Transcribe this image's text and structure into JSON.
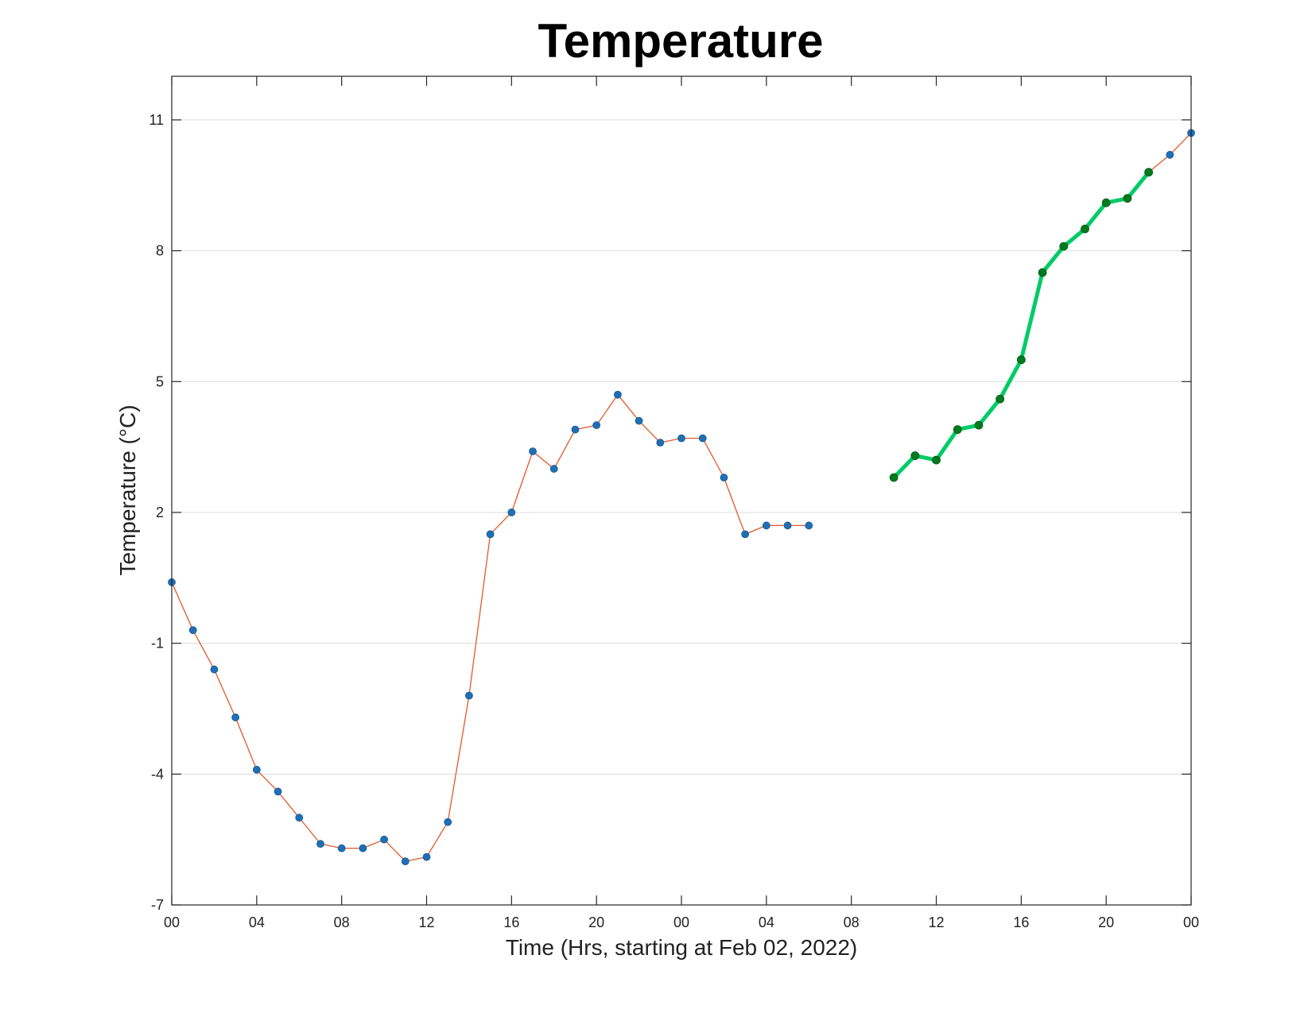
{
  "chart_data": {
    "type": "line",
    "title": "Temperature",
    "xlabel": "Time (Hrs, starting at Feb 02, 2022)",
    "ylabel": "Temperature (°C)",
    "xlim": [
      0,
      48
    ],
    "ylim": [
      -7,
      12
    ],
    "x_ticks": [
      0,
      4,
      8,
      12,
      16,
      20,
      24,
      28,
      32,
      36,
      40,
      44,
      48
    ],
    "x_tick_labels": [
      "00",
      "04",
      "08",
      "12",
      "16",
      "20",
      "00",
      "04",
      "08",
      "12",
      "16",
      "20",
      "00"
    ],
    "y_ticks": [
      -7,
      -4,
      -1,
      2,
      5,
      8,
      11
    ],
    "y_tick_labels": [
      "-7",
      "-4",
      "-1",
      "2",
      "5",
      "8",
      "11"
    ],
    "grid": true,
    "legend": false,
    "colors": {
      "observed_line": "#e05a2b",
      "observed_marker": "#1f6fb5",
      "highlight_line": "#00cc66",
      "highlight_marker": "#007a1f"
    },
    "series": [
      {
        "style": "thin-line-with-markers",
        "x": [
          0,
          1,
          2,
          3,
          4,
          5,
          6,
          7,
          8,
          9,
          10,
          11,
          12,
          13,
          14,
          15,
          16,
          17,
          18,
          19,
          20,
          21,
          22,
          23,
          24,
          25,
          26,
          27,
          28,
          29,
          30
        ],
        "y": [
          0.4,
          -0.7,
          -1.6,
          -2.7,
          -3.9,
          -4.4,
          -5.0,
          -5.6,
          -5.7,
          -5.7,
          -5.5,
          -6.0,
          -5.9,
          -5.1,
          -2.2,
          1.5,
          2.0,
          3.4,
          3.0,
          3.9,
          4.0,
          4.7,
          4.1,
          3.6,
          3.7,
          3.7,
          2.8,
          1.5,
          1.7,
          1.7,
          1.7
        ]
      },
      {
        "style": "thin-line-with-markers",
        "x": [
          46,
          47,
          48
        ],
        "y": [
          9.8,
          10.2,
          10.7
        ]
      },
      {
        "style": "thick-line-with-markers",
        "x": [
          34,
          35,
          36,
          37,
          38,
          39,
          40,
          41,
          42,
          43,
          44,
          45,
          46
        ],
        "y": [
          2.8,
          3.3,
          3.2,
          3.9,
          4.0,
          4.6,
          5.5,
          7.5,
          8.1,
          8.5,
          9.1,
          9.2,
          9.8
        ]
      }
    ]
  }
}
